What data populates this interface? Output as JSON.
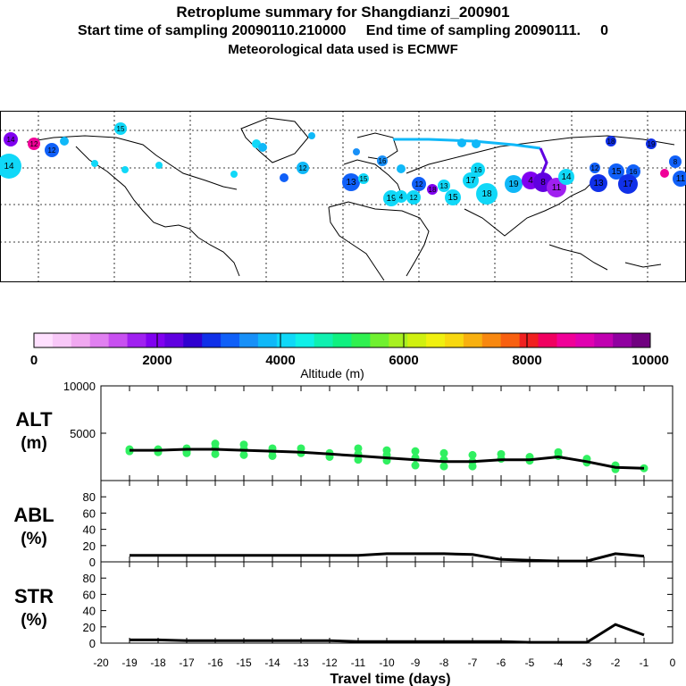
{
  "header": {
    "title": "Retroplume summary for Shangdianzi_200901",
    "sampling_line": "Start time of sampling 20090110.210000     End time of sampling 20090111.     0",
    "met_line": "Meteorological data used is ECMWF"
  },
  "colorbar": {
    "label": "Altitude (m)",
    "ticks": [
      "0",
      "2000",
      "4000",
      "6000",
      "8000",
      "10000"
    ],
    "colors": [
      "#ffe0ff",
      "#f8c8f8",
      "#f0a8f0",
      "#e080f0",
      "#c850f0",
      "#a020f0",
      "#8000f0",
      "#6000e0",
      "#3000d0",
      "#1030e8",
      "#1060f8",
      "#1890f8",
      "#10b8f8",
      "#10d8f8",
      "#10f0e8",
      "#10f0b0",
      "#10f080",
      "#30f050",
      "#70f030",
      "#a8f020",
      "#d0f010",
      "#f0f010",
      "#f8d810",
      "#f8b010",
      "#f88810",
      "#f86010",
      "#f02020",
      "#f00060",
      "#f00098",
      "#e000b0",
      "#c000b0",
      "#9000a0",
      "#700080"
    ]
  },
  "map_labels": [
    "14",
    "12",
    "13",
    "15",
    "16",
    "17",
    "18",
    "19",
    "4",
    "8",
    "11"
  ],
  "chart_data": [
    {
      "type": "scatter+line",
      "panel": "ALT",
      "ylabel": "ALT\n(m)",
      "ylim": [
        0,
        10000
      ],
      "yticks": [
        "5000",
        "10000"
      ],
      "x": [
        -19,
        -18,
        -17,
        -16,
        -15,
        -14,
        -13,
        -12,
        -11,
        -10,
        -9,
        -8,
        -7,
        -6,
        -5,
        -4,
        -3,
        -2,
        -1
      ],
      "line_values": [
        3200,
        3200,
        3300,
        3300,
        3200,
        3100,
        3000,
        2800,
        2600,
        2400,
        2200,
        2000,
        2000,
        2200,
        2200,
        2500,
        2000,
        1400,
        1300
      ],
      "scatter_color": "#30f060",
      "scatter_points": [
        [
          -19,
          3300
        ],
        [
          -19,
          3100
        ],
        [
          -18,
          3300
        ],
        [
          -18,
          3000
        ],
        [
          -17,
          3400
        ],
        [
          -17,
          3100
        ],
        [
          -17,
          2900
        ],
        [
          -16,
          3900
        ],
        [
          -16,
          3400
        ],
        [
          -16,
          2800
        ],
        [
          -15,
          3800
        ],
        [
          -15,
          3300
        ],
        [
          -15,
          2700
        ],
        [
          -14,
          3400
        ],
        [
          -14,
          3100
        ],
        [
          -14,
          2600
        ],
        [
          -13,
          3400
        ],
        [
          -13,
          2900
        ],
        [
          -12,
          2900
        ],
        [
          -12,
          2500
        ],
        [
          -11,
          3400
        ],
        [
          -11,
          2800
        ],
        [
          -11,
          2200
        ],
        [
          -10,
          3200
        ],
        [
          -10,
          2700
        ],
        [
          -10,
          2100
        ],
        [
          -9,
          3100
        ],
        [
          -9,
          2400
        ],
        [
          -9,
          1600
        ],
        [
          -8,
          2900
        ],
        [
          -8,
          2200
        ],
        [
          -8,
          1500
        ],
        [
          -7,
          2700
        ],
        [
          -7,
          2000
        ],
        [
          -7,
          1500
        ],
        [
          -6,
          2800
        ],
        [
          -6,
          2300
        ],
        [
          -5,
          2500
        ],
        [
          -5,
          2100
        ],
        [
          -4,
          3000
        ],
        [
          -4,
          2600
        ],
        [
          -3,
          2300
        ],
        [
          -3,
          1900
        ],
        [
          -2,
          1600
        ],
        [
          -2,
          1200
        ],
        [
          -1,
          1300
        ]
      ]
    },
    {
      "type": "line",
      "panel": "ABL",
      "ylabel": "ABL\n(%)",
      "ylim": [
        0,
        100
      ],
      "yticks": [
        "0",
        "20",
        "40",
        "60",
        "80"
      ],
      "x": [
        -19,
        -18,
        -17,
        -16,
        -15,
        -14,
        -13,
        -12,
        -11,
        -10,
        -9,
        -8,
        -7,
        -6,
        -5,
        -4,
        -3,
        -2,
        -1
      ],
      "values": [
        8,
        8,
        8,
        8,
        8,
        8,
        8,
        8,
        8,
        10,
        10,
        10,
        9,
        3,
        2,
        1,
        1,
        10,
        7
      ]
    },
    {
      "type": "line",
      "panel": "STR",
      "ylabel": "STR\n(%)",
      "ylim": [
        0,
        100
      ],
      "yticks": [
        "0",
        "20",
        "40",
        "60",
        "80"
      ],
      "x": [
        -19,
        -18,
        -17,
        -16,
        -15,
        -14,
        -13,
        -12,
        -11,
        -10,
        -9,
        -8,
        -7,
        -6,
        -5,
        -4,
        -3,
        -2,
        -1
      ],
      "values": [
        4,
        4,
        3,
        3,
        3,
        3,
        3,
        3,
        2,
        2,
        2,
        2,
        2,
        2,
        1,
        1,
        1,
        23,
        10
      ]
    }
  ],
  "xaxis": {
    "label": "Travel time (days)",
    "ticks": [
      "-20",
      "-19",
      "-18",
      "-17",
      "-16",
      "-15",
      "-14",
      "-13",
      "-12",
      "-11",
      "-10",
      "-9",
      "-8",
      "-7",
      "-6",
      "-5",
      "-4",
      "-3",
      "-2",
      "-1",
      "0"
    ]
  }
}
